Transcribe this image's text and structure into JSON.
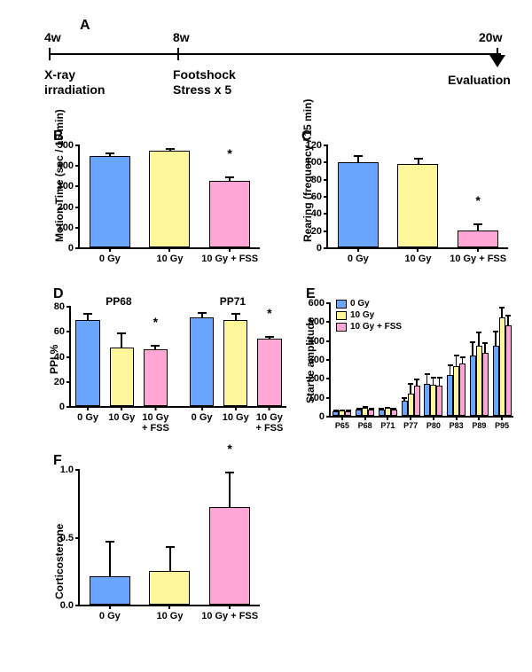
{
  "colors": {
    "g0": "#6aa6ff",
    "g10": "#fff79a",
    "g10f": "#ffa6d5",
    "axis": "#000000",
    "bg": "#ffffff"
  },
  "panelA": {
    "label": "A",
    "t4": "4w",
    "t8": "8w",
    "t20": "20w",
    "xray1": "X-ray",
    "xray2": "irradiation",
    "fs1": "Footshock",
    "fs2": "Stress x 5",
    "eval": "Evaluation"
  },
  "panelB": {
    "label": "B",
    "ylab": "Motion Time (sec / 15 min)",
    "ymax": 500,
    "ystep": 100,
    "cats": [
      "0 Gy",
      "10 Gy",
      "10 Gy + FSS"
    ],
    "vals": [
      445,
      470,
      325
    ],
    "errs": [
      18,
      12,
      18
    ],
    "stars": [
      false,
      false,
      true
    ]
  },
  "panelC": {
    "label": "C",
    "ylab": "Rearing (frequency / 15 min)",
    "ymax": 120,
    "ystep": 20,
    "cats": [
      "0 Gy",
      "10 Gy",
      "10 Gy + FSS"
    ],
    "vals": [
      99,
      97,
      20
    ],
    "errs": [
      9,
      7,
      8
    ],
    "stars": [
      false,
      false,
      true
    ]
  },
  "panelD": {
    "label": "D",
    "ylab": "PPI %",
    "ymax": 80,
    "ystep": 20,
    "sections": [
      "PP68",
      "PP71"
    ],
    "cats": [
      "0 Gy",
      "10 Gy",
      "10 Gy\n+ FSS",
      "0 Gy",
      "10 Gy",
      "10 Gy\n+ FSS"
    ],
    "vals": [
      69,
      47,
      45,
      71,
      69,
      54
    ],
    "errs": [
      5,
      12,
      4,
      4,
      5,
      2
    ],
    "colorsIdx": [
      0,
      1,
      2,
      0,
      1,
      2
    ],
    "stars": [
      false,
      false,
      true,
      false,
      false,
      true
    ]
  },
  "panelE": {
    "label": "E",
    "ylab": "Startle amplitude",
    "ymax": 600,
    "ystep": 100,
    "xcats": [
      "P65",
      "P68",
      "P71",
      "P77",
      "P80",
      "P83",
      "P89",
      "P95"
    ],
    "legend": [
      "0 Gy",
      "10 Gy",
      "10 Gy + FSS"
    ],
    "series": [
      [
        25,
        32,
        35,
        80,
        170,
        215,
        320,
        370
      ],
      [
        28,
        42,
        40,
        115,
        162,
        262,
        370,
        520
      ],
      [
        25,
        32,
        35,
        160,
        160,
        275,
        335,
        480
      ]
    ],
    "errs": [
      [
        6,
        8,
        8,
        20,
        55,
        55,
        75,
        80
      ],
      [
        6,
        10,
        8,
        58,
        45,
        60,
        75,
        55
      ],
      [
        6,
        8,
        8,
        35,
        45,
        40,
        55,
        55
      ]
    ]
  },
  "panelF": {
    "label": "F",
    "ylab": "Corticosterone",
    "ymax": 1.0,
    "ystep": 0.5,
    "decimals": 1,
    "cats": [
      "0 Gy",
      "10 Gy",
      "10 Gy + FSS"
    ],
    "vals": [
      0.21,
      0.25,
      0.72
    ],
    "errs": [
      0.26,
      0.18,
      0.26
    ],
    "stars": [
      false,
      false,
      true
    ]
  }
}
